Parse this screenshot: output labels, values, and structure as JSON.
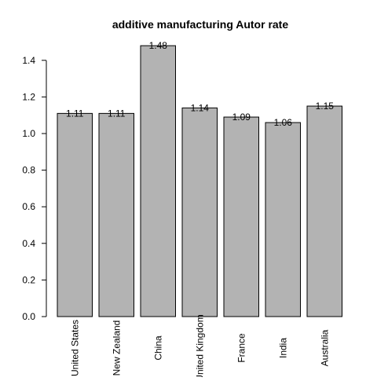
{
  "chart_data": {
    "type": "bar",
    "title": "additive manufacturing Autor rate",
    "xlabel": "",
    "ylabel": "",
    "categories": [
      "United States",
      "New Zealand",
      "China",
      "United Kingdom",
      "France",
      "India",
      "Australia"
    ],
    "values": [
      1.11,
      1.11,
      1.48,
      1.14,
      1.09,
      1.06,
      1.15
    ],
    "data_labels": [
      "1.11",
      "1.11",
      "1.48",
      "1.14",
      "1.09",
      "1.06",
      "1.15"
    ],
    "yticks": [
      0.0,
      0.2,
      0.4,
      0.6,
      0.8,
      1.0,
      1.2,
      1.4
    ],
    "ytick_labels": [
      "0.0",
      "0.2",
      "0.4",
      "0.6",
      "0.8",
      "1.0",
      "1.2",
      "1.4"
    ],
    "ylim": [
      0,
      1.48
    ],
    "grid": false,
    "legend": "none",
    "bar_color": "#b3b3b3",
    "bar_edge_color": "#000000"
  }
}
